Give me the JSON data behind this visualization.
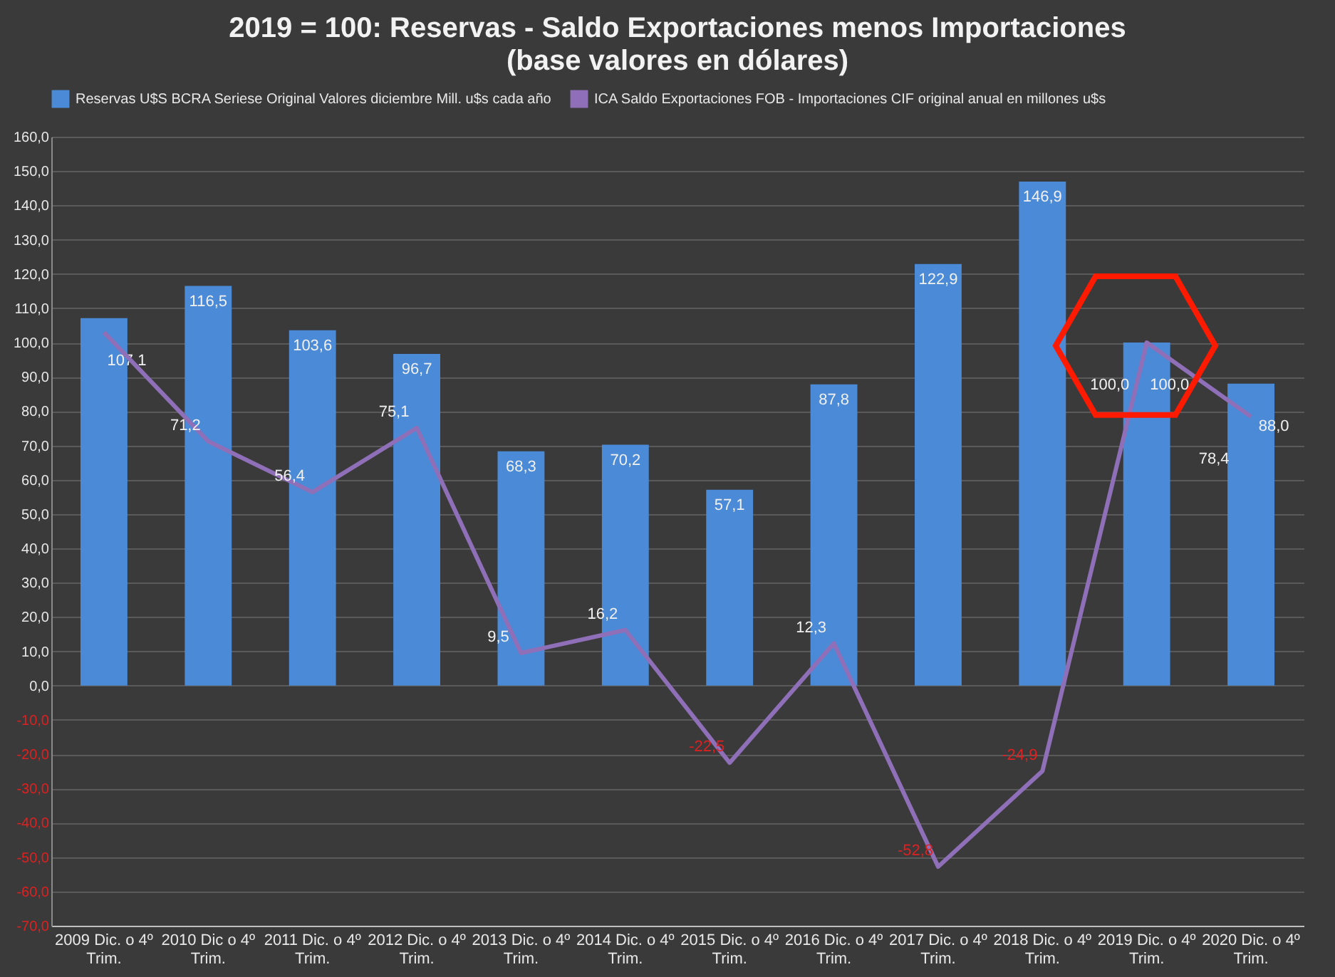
{
  "chart_data": {
    "type": "bar",
    "title": "2019 = 100:  Reservas - Saldo Exportaciones menos Importaciones",
    "subtitle": "(base valores en dólares)",
    "categories": [
      "2009 Dic. o 4º\nTrim.",
      "2010 Dic o 4º\nTrim.",
      "2011 Dic. o 4º\nTrim.",
      "2012 Dic. o 4º\nTrim.",
      "2013 Dic. o 4º\nTrim.",
      "2014 Dic. o 4º\nTrim.",
      "2015 Dic. o 4º\nTrim.",
      "2016 Dic. o 4º\nTrim.",
      "2017 Dic. o 4º\nTrim.",
      "2018 Dic. o 4º\nTrim.",
      "2019 Dic. o 4º\nTrim.",
      "2020 Dic. o 4º\nTrim."
    ],
    "series": [
      {
        "name": "Reservas U$S BCRA Seriese Original Valores diciembre Mill. u$s cada año",
        "color": "#4a8ad6",
        "values": [
          107.1,
          116.5,
          103.6,
          96.7,
          68.3,
          70.2,
          57.1,
          87.8,
          122.9,
          146.9,
          100.0,
          88.0
        ],
        "value_labels": [
          "107,1",
          "116,5",
          "103,6",
          "96,7",
          "68,3",
          "70,2",
          "57,1",
          "87,8",
          "122,9",
          "146,9",
          "100,0",
          "88,0"
        ]
      },
      {
        "name": "ICA Saldo Exportaciones FOB - Importaciones CIF original anual en millones u$s",
        "type": "line",
        "color": "#8e6fb8",
        "values": [
          103,
          71.2,
          56.4,
          75.1,
          9.5,
          16.2,
          -22.5,
          12.3,
          -52.8,
          -24.9,
          100.0,
          78.4
        ],
        "value_labels": [
          null,
          "71,2",
          "56,4",
          "75,1",
          "9,5",
          "16,2",
          "-22,5",
          "12,3",
          "-52,8",
          "-24,9",
          "100,0",
          "78,4"
        ]
      }
    ],
    "ylim": [
      -70,
      160
    ],
    "yticks": [
      {
        "value": -70,
        "label": "-70,0"
      },
      {
        "value": -60,
        "label": "-60,0"
      },
      {
        "value": -50,
        "label": "-50,0"
      },
      {
        "value": -40,
        "label": "-40,0"
      },
      {
        "value": -30,
        "label": "-30,0"
      },
      {
        "value": -20,
        "label": "-20,0"
      },
      {
        "value": -10,
        "label": "-10,0"
      },
      {
        "value": 0,
        "label": "0,0"
      },
      {
        "value": 10,
        "label": "10,0"
      },
      {
        "value": 20,
        "label": "20,0"
      },
      {
        "value": 30,
        "label": "30,0"
      },
      {
        "value": 40,
        "label": "40,0"
      },
      {
        "value": 50,
        "label": "50,0"
      },
      {
        "value": 60,
        "label": "60,0"
      },
      {
        "value": 70,
        "label": "70,0"
      },
      {
        "value": 80,
        "label": "80,0"
      },
      {
        "value": 90,
        "label": "90,0"
      },
      {
        "value": 100,
        "label": "100,0"
      },
      {
        "value": 110,
        "label": "110,0"
      },
      {
        "value": 120,
        "label": "120,0"
      },
      {
        "value": 130,
        "label": "130,0"
      },
      {
        "value": 140,
        "label": "140,0"
      },
      {
        "value": 150,
        "label": "150,0"
      },
      {
        "value": 160,
        "label": "160,0"
      }
    ],
    "grid": "y",
    "legend": "top"
  }
}
